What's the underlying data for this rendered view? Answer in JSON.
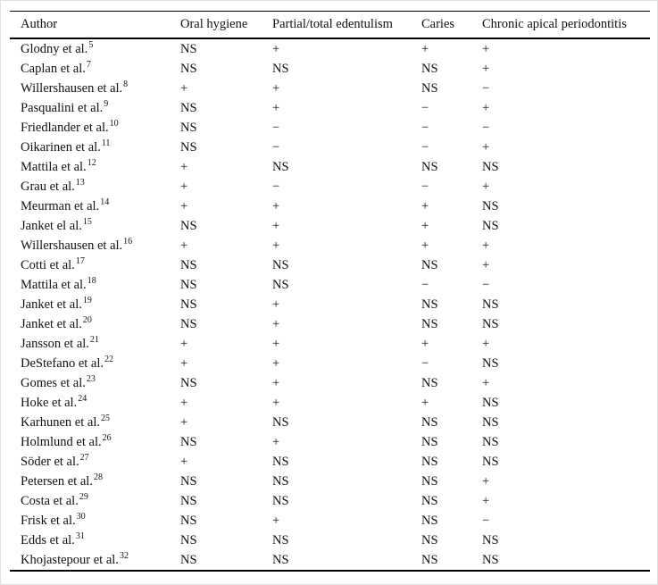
{
  "page": {
    "background_color": "#ffffff",
    "edge_border_color": "#e0e0e0",
    "rule_color": "#000000"
  },
  "table": {
    "columns": [
      "Author",
      "Oral hygiene",
      "Partial/total edentulism",
      "Caries",
      "Chronic apical periodontitis"
    ],
    "rows": [
      {
        "author": "Glodny et al.",
        "ref": "5",
        "values": [
          "NS",
          "+",
          "+",
          "+"
        ]
      },
      {
        "author": "Caplan et al.",
        "ref": "7",
        "values": [
          "NS",
          "NS",
          "NS",
          "+"
        ]
      },
      {
        "author": "Willershausen et al.",
        "ref": "8",
        "values": [
          "+",
          "+",
          "NS",
          "−"
        ]
      },
      {
        "author": "Pasqualini et al.",
        "ref": "9",
        "values": [
          "NS",
          "+",
          "−",
          "+"
        ]
      },
      {
        "author": "Friedlander et al.",
        "ref": "10",
        "values": [
          "NS",
          "−",
          "−",
          "−"
        ]
      },
      {
        "author": "Oikarinen et al.",
        "ref": "11",
        "values": [
          "NS",
          "−",
          "−",
          "+"
        ]
      },
      {
        "author": "Mattila et al.",
        "ref": "12",
        "values": [
          "+",
          "NS",
          "NS",
          "NS"
        ]
      },
      {
        "author": "Grau et al.",
        "ref": "13",
        "values": [
          "+",
          "−",
          "−",
          "+"
        ]
      },
      {
        "author": "Meurman et al.",
        "ref": "14",
        "values": [
          "+",
          "+",
          "+",
          "NS"
        ]
      },
      {
        "author": "Janket el al.",
        "ref": "15",
        "values": [
          "NS",
          "+",
          "+",
          "NS"
        ]
      },
      {
        "author": "Willershausen et al.",
        "ref": "16",
        "values": [
          "+",
          "+",
          "+",
          "+"
        ]
      },
      {
        "author": "Cotti et al.",
        "ref": "17",
        "values": [
          "NS",
          "NS",
          "NS",
          "+"
        ]
      },
      {
        "author": "Mattila et al.",
        "ref": "18",
        "values": [
          "NS",
          "NS",
          "−",
          "−"
        ]
      },
      {
        "author": "Janket et al.",
        "ref": "19",
        "values": [
          "NS",
          "+",
          "NS",
          "NS"
        ]
      },
      {
        "author": "Janket et al.",
        "ref": "20",
        "values": [
          "NS",
          "+",
          "NS",
          "NS"
        ]
      },
      {
        "author": "Jansson et al.",
        "ref": "21",
        "values": [
          "+",
          "+",
          "+",
          "+"
        ]
      },
      {
        "author": "DeStefano et al.",
        "ref": "22",
        "values": [
          "+",
          "+",
          "−",
          "NS"
        ]
      },
      {
        "author": "Gomes et al.",
        "ref": "23",
        "values": [
          "NS",
          "+",
          "NS",
          "+"
        ]
      },
      {
        "author": "Hoke et al.",
        "ref": "24",
        "values": [
          "+",
          "+",
          "+",
          "NS"
        ]
      },
      {
        "author": "Karhunen et al.",
        "ref": "25",
        "values": [
          "+",
          "NS",
          "NS",
          "NS"
        ]
      },
      {
        "author": "Holmlund et al.",
        "ref": "26",
        "values": [
          "NS",
          "+",
          "NS",
          "NS"
        ]
      },
      {
        "author": "Söder et al.",
        "ref": "27",
        "values": [
          "+",
          "NS",
          "NS",
          "NS"
        ]
      },
      {
        "author": "Petersen et al.",
        "ref": "28",
        "values": [
          "NS",
          "NS",
          "NS",
          "+"
        ]
      },
      {
        "author": "Costa et al.",
        "ref": "29",
        "values": [
          "NS",
          "NS",
          "NS",
          "+"
        ]
      },
      {
        "author": "Frisk et al.",
        "ref": "30",
        "values": [
          "NS",
          "+",
          "NS",
          "−"
        ]
      },
      {
        "author": "Edds et al.",
        "ref": "31",
        "values": [
          "NS",
          "NS",
          "NS",
          "NS"
        ]
      },
      {
        "author": "Khojastepour et al.",
        "ref": "32",
        "values": [
          "NS",
          "NS",
          "NS",
          "NS"
        ]
      }
    ]
  }
}
